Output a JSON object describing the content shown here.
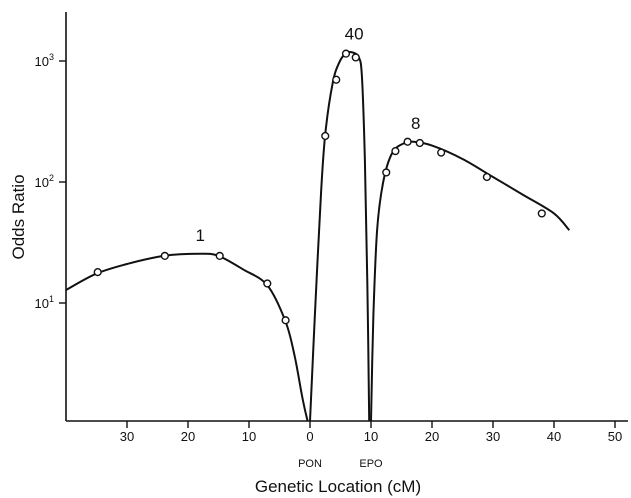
{
  "chart_data": {
    "type": "line",
    "ylabel": "Odds Ratio",
    "xlabel": "Genetic Location (cM)",
    "y_scale": "log",
    "ylim": [
      1,
      2500
    ],
    "xlim": [
      -40,
      52
    ],
    "y_ticks": [
      {
        "value": 10,
        "base": "10",
        "exp": "1"
      },
      {
        "value": 100,
        "base": "10",
        "exp": "2"
      },
      {
        "value": 1000,
        "base": "10",
        "exp": "3"
      }
    ],
    "x_ticks": [
      {
        "value": -30,
        "label": "30"
      },
      {
        "value": -20,
        "label": "20"
      },
      {
        "value": -10,
        "label": "10"
      },
      {
        "value": 0,
        "label": "0"
      },
      {
        "value": 10,
        "label": "10"
      },
      {
        "value": 20,
        "label": "20"
      },
      {
        "value": 30,
        "label": "30"
      },
      {
        "value": 40,
        "label": "40"
      },
      {
        "value": 50,
        "label": "50"
      }
    ],
    "markers": [
      {
        "value": 0,
        "label": "PON"
      },
      {
        "value": 10,
        "label": "EPO"
      }
    ],
    "series": [
      {
        "name": "1",
        "curve": [
          [
            -40,
            12.8
          ],
          [
            -35,
            17.5
          ],
          [
            -30,
            21
          ],
          [
            -24,
            24.5
          ],
          [
            -18,
            25.5
          ],
          [
            -15,
            24.5
          ],
          [
            -11,
            19
          ],
          [
            -7,
            14
          ],
          [
            -4,
            7
          ],
          [
            -2.5,
            3.6
          ],
          [
            -1.2,
            1.6
          ],
          [
            -0.4,
            1
          ]
        ],
        "points": [
          [
            -34.8,
            18
          ],
          [
            -23.8,
            24.5
          ],
          [
            -14.8,
            24.5
          ],
          [
            -7,
            14.5
          ],
          [
            -4,
            7.2
          ]
        ]
      },
      {
        "name": "40",
        "curve": [
          [
            0,
            1
          ],
          [
            0.8,
            8
          ],
          [
            1.8,
            80
          ],
          [
            2.5,
            250
          ],
          [
            3.7,
            650
          ],
          [
            4.7,
            950
          ],
          [
            5.8,
            1150
          ],
          [
            6.9,
            1180
          ],
          [
            8,
            1070
          ],
          [
            8.5,
            750
          ],
          [
            9,
            150
          ],
          [
            9.4,
            15
          ],
          [
            9.7,
            1
          ]
        ],
        "points": [
          [
            2.5,
            240
          ],
          [
            4.3,
            700
          ],
          [
            5.9,
            1150
          ],
          [
            7.5,
            1070
          ]
        ]
      },
      {
        "name": "8",
        "curve": [
          [
            10,
            1
          ],
          [
            10.4,
            8
          ],
          [
            11,
            40
          ],
          [
            12,
            100
          ],
          [
            13.5,
            175
          ],
          [
            15.5,
            210
          ],
          [
            17,
            215
          ],
          [
            20,
            200
          ],
          [
            25,
            155
          ],
          [
            30,
            110
          ],
          [
            35,
            78
          ],
          [
            40,
            55
          ],
          [
            42.5,
            40
          ]
        ],
        "points": [
          [
            12.5,
            120
          ],
          [
            14,
            180
          ],
          [
            16,
            215
          ],
          [
            18,
            210
          ],
          [
            21.5,
            175
          ],
          [
            29,
            110
          ],
          [
            38,
            55
          ]
        ]
      }
    ]
  }
}
